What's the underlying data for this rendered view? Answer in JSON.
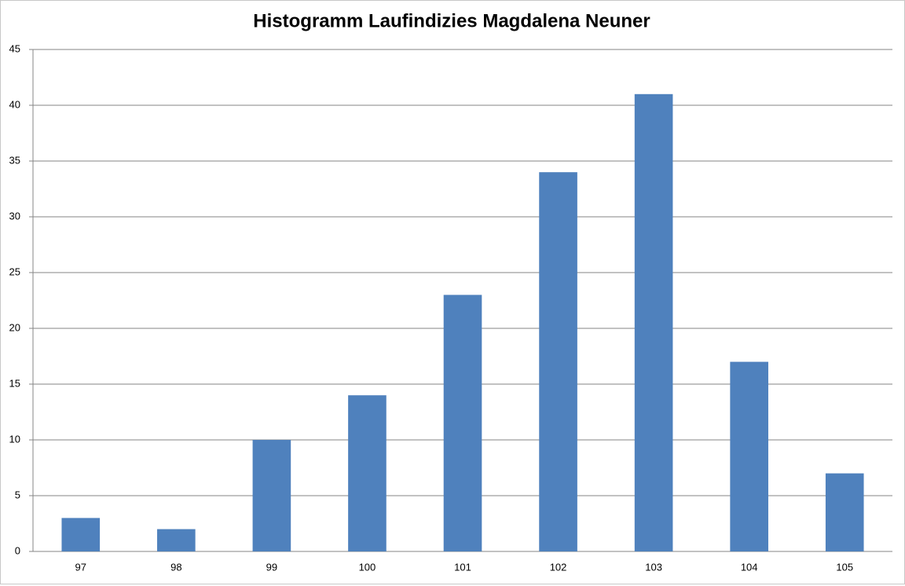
{
  "chart_data": {
    "type": "bar",
    "title": "Histogramm Laufindizies Magdalena Neuner",
    "categories": [
      "97",
      "98",
      "99",
      "100",
      "101",
      "102",
      "103",
      "104",
      "105"
    ],
    "values": [
      3,
      2,
      10,
      14,
      23,
      34,
      41,
      17,
      7
    ],
    "color": "#4f81bd",
    "ylim": [
      0,
      45
    ],
    "yticks": [
      0,
      5,
      10,
      15,
      20,
      25,
      30,
      35,
      40,
      45
    ],
    "grid": true
  }
}
